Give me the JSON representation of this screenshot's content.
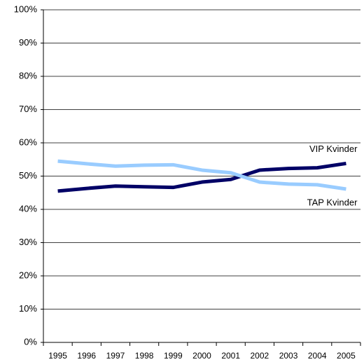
{
  "chart_data": {
    "type": "line",
    "categories": [
      "1995",
      "1996",
      "1997",
      "1998",
      "1999",
      "2000",
      "2001",
      "2002",
      "2003",
      "2004",
      "2005"
    ],
    "series": [
      {
        "name": "VIP Kvinder",
        "color": "#000066",
        "values": [
          45.5,
          46.3,
          47,
          46.8,
          46.6,
          48.2,
          49,
          51.8,
          52.3,
          52.5,
          53.8
        ]
      },
      {
        "name": "TAP Kvinder",
        "color": "#99ccff",
        "values": [
          54.5,
          53.7,
          53,
          53.3,
          53.4,
          51.8,
          51,
          48.2,
          47.6,
          47.4,
          46.1
        ]
      }
    ],
    "ylim": [
      0,
      100
    ],
    "yticks": [
      {
        "value": 0,
        "label": "0%"
      },
      {
        "value": 10,
        "label": "10%"
      },
      {
        "value": 20,
        "label": "20%"
      },
      {
        "value": 30,
        "label": "30%"
      },
      {
        "value": 40,
        "label": "40%"
      },
      {
        "value": 50,
        "label": "50%"
      },
      {
        "value": 60,
        "label": "60%"
      },
      {
        "value": 70,
        "label": "70%"
      },
      {
        "value": 80,
        "label": "80%"
      },
      {
        "value": 90,
        "label": "90%"
      },
      {
        "value": 100,
        "label": "100%"
      }
    ],
    "grid": true
  }
}
